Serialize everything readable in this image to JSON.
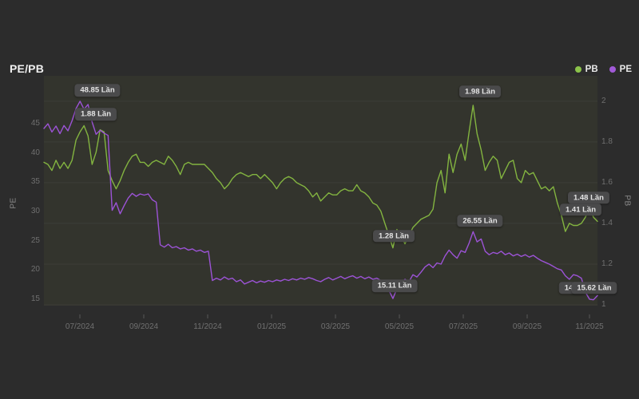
{
  "page": {
    "background": "#2c2c2c"
  },
  "header": {
    "title": "PE/PB"
  },
  "legend": [
    {
      "label": "PB",
      "color": "#8bc34a"
    },
    {
      "label": "PE",
      "color": "#a15ad8"
    }
  ],
  "chart_data": {
    "type": "line",
    "title": "PE/PB",
    "unit": "Lần",
    "plot_bg": "#33342d",
    "grid_color": "#3c3d38",
    "legend_position": "top-right",
    "x_axis": {
      "labels": [
        "07/2024",
        "09/2024",
        "11/2024",
        "01/2025",
        "03/2025",
        "05/2025",
        "07/2025",
        "09/2025",
        "11/2025"
      ],
      "fracs": [
        0.0649,
        0.1804,
        0.2958,
        0.4113,
        0.5267,
        0.6421,
        0.7576,
        0.873,
        0.9856
      ]
    },
    "left_axis": {
      "label": "PE",
      "ticks": [
        "45",
        "40",
        "35",
        "30",
        "25",
        "20",
        "15"
      ],
      "tick_values": [
        45,
        40,
        35,
        30,
        25,
        20,
        15
      ],
      "min": 13.9,
      "max": 53.2
    },
    "right_axis": {
      "label": "PB",
      "ticks": [
        "2",
        "1.8",
        "1.6",
        "1.4",
        "1.2",
        "1"
      ],
      "tick_values": [
        2,
        1.8,
        1.6,
        1.4,
        1.2,
        1
      ],
      "min": 0.996,
      "max": 2.125
    },
    "series": [
      {
        "name": "PB",
        "axis": "right",
        "color": "#83b440",
        "values": [
          1.7,
          1.69,
          1.66,
          1.71,
          1.67,
          1.7,
          1.67,
          1.71,
          1.81,
          1.85,
          1.88,
          1.83,
          1.69,
          1.75,
          1.86,
          1.85,
          1.66,
          1.61,
          1.57,
          1.61,
          1.66,
          1.7,
          1.73,
          1.74,
          1.7,
          1.7,
          1.68,
          1.7,
          1.71,
          1.7,
          1.69,
          1.73,
          1.71,
          1.68,
          1.64,
          1.69,
          1.7,
          1.69,
          1.69,
          1.69,
          1.69,
          1.67,
          1.65,
          1.62,
          1.6,
          1.57,
          1.59,
          1.62,
          1.64,
          1.65,
          1.64,
          1.63,
          1.64,
          1.64,
          1.62,
          1.64,
          1.62,
          1.6,
          1.57,
          1.6,
          1.62,
          1.63,
          1.62,
          1.6,
          1.59,
          1.58,
          1.56,
          1.53,
          1.55,
          1.51,
          1.53,
          1.55,
          1.54,
          1.54,
          1.56,
          1.57,
          1.56,
          1.56,
          1.59,
          1.56,
          1.55,
          1.53,
          1.5,
          1.49,
          1.46,
          1.4,
          1.34,
          1.28,
          1.37,
          1.34,
          1.3,
          1.34,
          1.38,
          1.4,
          1.42,
          1.43,
          1.44,
          1.47,
          1.6,
          1.66,
          1.55,
          1.74,
          1.65,
          1.74,
          1.79,
          1.71,
          1.85,
          1.98,
          1.84,
          1.76,
          1.66,
          1.7,
          1.73,
          1.71,
          1.62,
          1.66,
          1.7,
          1.71,
          1.62,
          1.6,
          1.66,
          1.64,
          1.65,
          1.61,
          1.57,
          1.58,
          1.56,
          1.58,
          1.5,
          1.44,
          1.36,
          1.4,
          1.39,
          1.39,
          1.4,
          1.43,
          1.48,
          1.43,
          1.41
        ]
      },
      {
        "name": "PE",
        "axis": "left",
        "color": "#9c53d6",
        "values": [
          44.2,
          45.0,
          43.6,
          44.6,
          43.3,
          44.7,
          43.8,
          45.5,
          47.6,
          48.85,
          47.5,
          48.3,
          45.3,
          43.2,
          43.9,
          43.4,
          43.0,
          30.2,
          31.5,
          29.6,
          31.0,
          32.3,
          33.1,
          32.6,
          33.0,
          32.8,
          33.0,
          32.0,
          31.6,
          24.3,
          23.9,
          24.4,
          23.8,
          24.0,
          23.6,
          23.8,
          23.4,
          23.6,
          23.2,
          23.4,
          23.0,
          23.2,
          18.2,
          18.6,
          18.3,
          18.8,
          18.4,
          18.6,
          18.0,
          18.3,
          17.6,
          17.9,
          18.2,
          17.8,
          18.1,
          17.9,
          18.2,
          18.0,
          18.3,
          18.1,
          18.4,
          18.2,
          18.5,
          18.3,
          18.6,
          18.4,
          18.7,
          18.5,
          18.2,
          18.0,
          18.4,
          18.7,
          18.3,
          18.6,
          18.9,
          18.5,
          18.8,
          19.0,
          18.6,
          18.9,
          18.5,
          18.8,
          18.4,
          18.6,
          18.2,
          17.8,
          16.5,
          15.11,
          16.8,
          17.8,
          18.4,
          18.0,
          19.2,
          18.8,
          19.6,
          20.5,
          21.0,
          20.4,
          21.2,
          21.0,
          22.4,
          23.4,
          22.6,
          22.0,
          23.3,
          23.0,
          24.6,
          26.55,
          24.8,
          25.3,
          23.2,
          22.6,
          23.0,
          22.8,
          23.2,
          22.6,
          22.9,
          22.4,
          22.7,
          22.3,
          22.6,
          22.2,
          22.5,
          22.0,
          21.6,
          21.3,
          21.0,
          20.6,
          20.2,
          20.0,
          19.0,
          18.4,
          19.2,
          19.0,
          18.6,
          16.2,
          15.0,
          14.9,
          15.62
        ]
      }
    ],
    "annotations": [
      {
        "text": "48.85 Lần",
        "fx": 0.0967,
        "fy": 0.0625
      },
      {
        "text": "1.88 Lần",
        "fx": 0.0938,
        "fy": 0.1667
      },
      {
        "text": "1.28 Lần",
        "fx": 0.632,
        "fy": 0.6979
      },
      {
        "text": "15.11 Lần",
        "fx": 0.6335,
        "fy": 0.9132
      },
      {
        "text": "1.98 Lần",
        "fx": 0.7879,
        "fy": 0.0694
      },
      {
        "text": "26.55 Lần",
        "fx": 0.7879,
        "fy": 0.6319
      },
      {
        "text": "1.48 Lần",
        "fx": 0.9841,
        "fy": 0.5312
      },
      {
        "text": "1.41 Lần",
        "fx": 0.9697,
        "fy": 0.5833
      },
      {
        "text": "14.9",
        "fx": 0.9538,
        "fy": 0.9236
      },
      {
        "text": "15.62 Lần",
        "fx": 0.9942,
        "fy": 0.9236
      }
    ]
  }
}
